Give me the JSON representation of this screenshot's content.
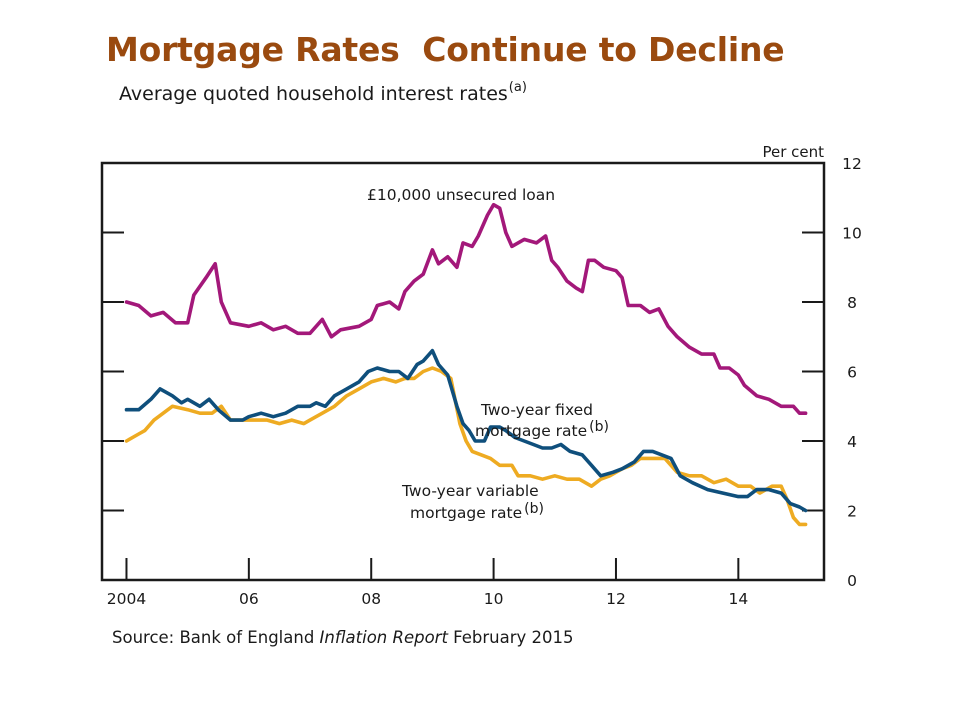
{
  "slide": {
    "title": "Mortgage Rates  Continue to Decline",
    "subtitle": "Average quoted household interest rates",
    "subtitle_note": "(a)",
    "source_prefix": "Source: Bank of England ",
    "source_publication": "Inflation Report",
    "source_suffix": " February 2015",
    "title_color": "#9a4a0f"
  },
  "chart_data": {
    "type": "line",
    "y_unit": "Per cent",
    "ylim": [
      0,
      12
    ],
    "y_ticks": [
      0,
      2,
      4,
      6,
      8,
      10,
      12
    ],
    "xlim": [
      2003.6,
      2015.4
    ],
    "x_ticks": [
      {
        "value": 2004,
        "label": "2004"
      },
      {
        "value": 2006,
        "label": "06"
      },
      {
        "value": 2008,
        "label": "08"
      },
      {
        "value": 2010,
        "label": "10"
      },
      {
        "value": 2012,
        "label": "12"
      },
      {
        "value": 2014,
        "label": "14"
      }
    ],
    "grid": false,
    "series": [
      {
        "name": "£10,000 unsecured loan",
        "color": "#a3187a",
        "points": [
          [
            2004.0,
            8.0
          ],
          [
            2004.2,
            7.9
          ],
          [
            2004.4,
            7.6
          ],
          [
            2004.6,
            7.7
          ],
          [
            2004.8,
            7.4
          ],
          [
            2005.0,
            7.4
          ],
          [
            2005.1,
            8.2
          ],
          [
            2005.3,
            8.7
          ],
          [
            2005.45,
            9.1
          ],
          [
            2005.55,
            8.0
          ],
          [
            2005.7,
            7.4
          ],
          [
            2006.0,
            7.3
          ],
          [
            2006.2,
            7.4
          ],
          [
            2006.4,
            7.2
          ],
          [
            2006.6,
            7.3
          ],
          [
            2006.8,
            7.1
          ],
          [
            2007.0,
            7.1
          ],
          [
            2007.2,
            7.5
          ],
          [
            2007.35,
            7.0
          ],
          [
            2007.5,
            7.2
          ],
          [
            2007.8,
            7.3
          ],
          [
            2008.0,
            7.5
          ],
          [
            2008.1,
            7.9
          ],
          [
            2008.3,
            8.0
          ],
          [
            2008.45,
            7.8
          ],
          [
            2008.55,
            8.3
          ],
          [
            2008.7,
            8.6
          ],
          [
            2008.85,
            8.8
          ],
          [
            2009.0,
            9.5
          ],
          [
            2009.1,
            9.1
          ],
          [
            2009.25,
            9.3
          ],
          [
            2009.4,
            9.0
          ],
          [
            2009.5,
            9.7
          ],
          [
            2009.65,
            9.6
          ],
          [
            2009.75,
            9.9
          ],
          [
            2009.85,
            10.3
          ],
          [
            2009.9,
            10.5
          ],
          [
            2010.0,
            10.8
          ],
          [
            2010.1,
            10.7
          ],
          [
            2010.2,
            10.0
          ],
          [
            2010.3,
            9.6
          ],
          [
            2010.5,
            9.8
          ],
          [
            2010.7,
            9.7
          ],
          [
            2010.85,
            9.9
          ],
          [
            2010.95,
            9.2
          ],
          [
            2011.05,
            9.0
          ],
          [
            2011.2,
            8.6
          ],
          [
            2011.35,
            8.4
          ],
          [
            2011.45,
            8.3
          ],
          [
            2011.55,
            9.2
          ],
          [
            2011.65,
            9.2
          ],
          [
            2011.8,
            9.0
          ],
          [
            2012.0,
            8.9
          ],
          [
            2012.1,
            8.7
          ],
          [
            2012.2,
            7.9
          ],
          [
            2012.4,
            7.9
          ],
          [
            2012.55,
            7.7
          ],
          [
            2012.7,
            7.8
          ],
          [
            2012.85,
            7.3
          ],
          [
            2013.0,
            7.0
          ],
          [
            2013.2,
            6.7
          ],
          [
            2013.4,
            6.5
          ],
          [
            2013.6,
            6.5
          ],
          [
            2013.7,
            6.1
          ],
          [
            2013.85,
            6.1
          ],
          [
            2014.0,
            5.9
          ],
          [
            2014.1,
            5.6
          ],
          [
            2014.3,
            5.3
          ],
          [
            2014.5,
            5.2
          ],
          [
            2014.7,
            5.0
          ],
          [
            2014.9,
            5.0
          ],
          [
            2015.0,
            4.8
          ],
          [
            2015.1,
            4.8
          ]
        ]
      },
      {
        "name": "Two-year fixed mortgage rate",
        "note": "(b)",
        "color": "#0f4f7c",
        "points": [
          [
            2004.0,
            4.9
          ],
          [
            2004.2,
            4.9
          ],
          [
            2004.4,
            5.2
          ],
          [
            2004.55,
            5.5
          ],
          [
            2004.75,
            5.3
          ],
          [
            2004.9,
            5.1
          ],
          [
            2005.0,
            5.2
          ],
          [
            2005.2,
            5.0
          ],
          [
            2005.35,
            5.2
          ],
          [
            2005.5,
            4.9
          ],
          [
            2005.7,
            4.6
          ],
          [
            2005.9,
            4.6
          ],
          [
            2006.0,
            4.7
          ],
          [
            2006.2,
            4.8
          ],
          [
            2006.4,
            4.7
          ],
          [
            2006.6,
            4.8
          ],
          [
            2006.8,
            5.0
          ],
          [
            2007.0,
            5.0
          ],
          [
            2007.1,
            5.1
          ],
          [
            2007.25,
            5.0
          ],
          [
            2007.4,
            5.3
          ],
          [
            2007.6,
            5.5
          ],
          [
            2007.8,
            5.7
          ],
          [
            2007.95,
            6.0
          ],
          [
            2008.1,
            6.1
          ],
          [
            2008.3,
            6.0
          ],
          [
            2008.45,
            6.0
          ],
          [
            2008.6,
            5.8
          ],
          [
            2008.75,
            6.2
          ],
          [
            2008.85,
            6.3
          ],
          [
            2009.0,
            6.6
          ],
          [
            2009.1,
            6.2
          ],
          [
            2009.25,
            5.9
          ],
          [
            2009.4,
            5.0
          ],
          [
            2009.5,
            4.5
          ],
          [
            2009.6,
            4.3
          ],
          [
            2009.7,
            4.0
          ],
          [
            2009.85,
            4.0
          ],
          [
            2009.95,
            4.4
          ],
          [
            2010.1,
            4.4
          ],
          [
            2010.2,
            4.3
          ],
          [
            2010.35,
            4.1
          ],
          [
            2010.5,
            4.0
          ],
          [
            2010.65,
            3.9
          ],
          [
            2010.8,
            3.8
          ],
          [
            2010.95,
            3.8
          ],
          [
            2011.1,
            3.9
          ],
          [
            2011.25,
            3.7
          ],
          [
            2011.45,
            3.6
          ],
          [
            2011.6,
            3.3
          ],
          [
            2011.75,
            3.0
          ],
          [
            2011.95,
            3.1
          ],
          [
            2012.1,
            3.2
          ],
          [
            2012.3,
            3.4
          ],
          [
            2012.45,
            3.7
          ],
          [
            2012.6,
            3.7
          ],
          [
            2012.75,
            3.6
          ],
          [
            2012.9,
            3.5
          ],
          [
            2013.05,
            3.0
          ],
          [
            2013.25,
            2.8
          ],
          [
            2013.5,
            2.6
          ],
          [
            2013.75,
            2.5
          ],
          [
            2014.0,
            2.4
          ],
          [
            2014.15,
            2.4
          ],
          [
            2014.3,
            2.6
          ],
          [
            2014.5,
            2.6
          ],
          [
            2014.7,
            2.5
          ],
          [
            2014.85,
            2.2
          ],
          [
            2015.0,
            2.1
          ],
          [
            2015.1,
            2.0
          ]
        ]
      },
      {
        "name": "Two-year variable mortgage rate",
        "note": "(b)",
        "color": "#eeab22",
        "points": [
          [
            2004.0,
            4.0
          ],
          [
            2004.2,
            4.2
          ],
          [
            2004.3,
            4.3
          ],
          [
            2004.45,
            4.6
          ],
          [
            2004.6,
            4.8
          ],
          [
            2004.75,
            5.0
          ],
          [
            2005.0,
            4.9
          ],
          [
            2005.2,
            4.8
          ],
          [
            2005.4,
            4.8
          ],
          [
            2005.55,
            5.0
          ],
          [
            2005.7,
            4.6
          ],
          [
            2005.9,
            4.6
          ],
          [
            2006.1,
            4.6
          ],
          [
            2006.3,
            4.6
          ],
          [
            2006.5,
            4.5
          ],
          [
            2006.7,
            4.6
          ],
          [
            2006.9,
            4.5
          ],
          [
            2007.0,
            4.6
          ],
          [
            2007.2,
            4.8
          ],
          [
            2007.4,
            5.0
          ],
          [
            2007.6,
            5.3
          ],
          [
            2007.8,
            5.5
          ],
          [
            2008.0,
            5.7
          ],
          [
            2008.2,
            5.8
          ],
          [
            2008.4,
            5.7
          ],
          [
            2008.55,
            5.8
          ],
          [
            2008.7,
            5.8
          ],
          [
            2008.85,
            6.0
          ],
          [
            2009.0,
            6.1
          ],
          [
            2009.15,
            6.0
          ],
          [
            2009.3,
            5.8
          ],
          [
            2009.45,
            4.5
          ],
          [
            2009.55,
            4.0
          ],
          [
            2009.65,
            3.7
          ],
          [
            2009.8,
            3.6
          ],
          [
            2009.95,
            3.5
          ],
          [
            2010.1,
            3.3
          ],
          [
            2010.3,
            3.3
          ],
          [
            2010.4,
            3.0
          ],
          [
            2010.6,
            3.0
          ],
          [
            2010.8,
            2.9
          ],
          [
            2011.0,
            3.0
          ],
          [
            2011.2,
            2.9
          ],
          [
            2011.4,
            2.9
          ],
          [
            2011.6,
            2.7
          ],
          [
            2011.75,
            2.9
          ],
          [
            2011.9,
            3.0
          ],
          [
            2012.1,
            3.2
          ],
          [
            2012.25,
            3.3
          ],
          [
            2012.4,
            3.5
          ],
          [
            2012.6,
            3.5
          ],
          [
            2012.8,
            3.5
          ],
          [
            2013.0,
            3.1
          ],
          [
            2013.2,
            3.0
          ],
          [
            2013.4,
            3.0
          ],
          [
            2013.6,
            2.8
          ],
          [
            2013.8,
            2.9
          ],
          [
            2014.0,
            2.7
          ],
          [
            2014.2,
            2.7
          ],
          [
            2014.35,
            2.5
          ],
          [
            2014.55,
            2.7
          ],
          [
            2014.7,
            2.7
          ],
          [
            2014.8,
            2.3
          ],
          [
            2014.9,
            1.8
          ],
          [
            2015.0,
            1.6
          ],
          [
            2015.1,
            1.6
          ]
        ]
      }
    ],
    "annotations": [
      {
        "text": "£10,000 unsecured loan",
        "series": 0
      },
      {
        "text": "Two-year fixed",
        "text2": "mortgage rate",
        "note": "(b)",
        "series": 1
      },
      {
        "text": "Two-year variable",
        "text2": "mortgage rate",
        "note": "(b)",
        "series": 2
      }
    ]
  }
}
